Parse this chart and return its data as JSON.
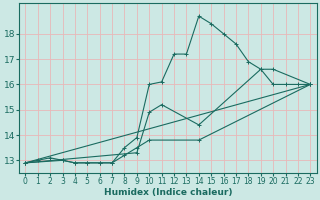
{
  "xlabel": "Humidex (Indice chaleur)",
  "bg_color": "#cce8e4",
  "line_color": "#1a6b60",
  "grid_color": "#b8ddd8",
  "xlim": [
    -0.5,
    23.5
  ],
  "ylim": [
    12.5,
    19.2
  ],
  "yticks": [
    13,
    14,
    15,
    16,
    17,
    18
  ],
  "xticks": [
    0,
    1,
    2,
    3,
    4,
    5,
    6,
    7,
    8,
    9,
    10,
    11,
    12,
    13,
    14,
    15,
    16,
    17,
    18,
    19,
    20,
    21,
    22,
    23
  ],
  "series": [
    {
      "x": [
        0,
        1,
        2,
        3,
        4,
        5,
        6,
        7,
        8,
        9,
        10,
        11,
        12,
        13,
        14,
        15,
        16,
        17,
        18,
        19,
        20,
        21,
        22,
        23
      ],
      "y": [
        12.9,
        13.0,
        13.1,
        13.0,
        12.9,
        12.9,
        12.9,
        12.9,
        13.5,
        13.9,
        16.0,
        16.1,
        17.2,
        17.2,
        18.7,
        18.4,
        18.0,
        17.6,
        16.9,
        16.6,
        16.0,
        16.0,
        16.0,
        16.0
      ],
      "marker": "+"
    },
    {
      "x": [
        0,
        23
      ],
      "y": [
        12.9,
        16.0
      ],
      "marker": null
    },
    {
      "x": [
        0,
        9,
        10,
        11,
        14,
        19,
        20,
        23
      ],
      "y": [
        12.9,
        13.3,
        14.9,
        15.2,
        14.4,
        16.6,
        16.6,
        16.0
      ],
      "marker": "+"
    },
    {
      "x": [
        0,
        3,
        4,
        5,
        6,
        7,
        8,
        9,
        10,
        14,
        23
      ],
      "y": [
        12.9,
        13.0,
        12.9,
        12.9,
        12.9,
        12.9,
        13.2,
        13.5,
        13.8,
        13.8,
        16.0
      ],
      "marker": "+"
    }
  ]
}
